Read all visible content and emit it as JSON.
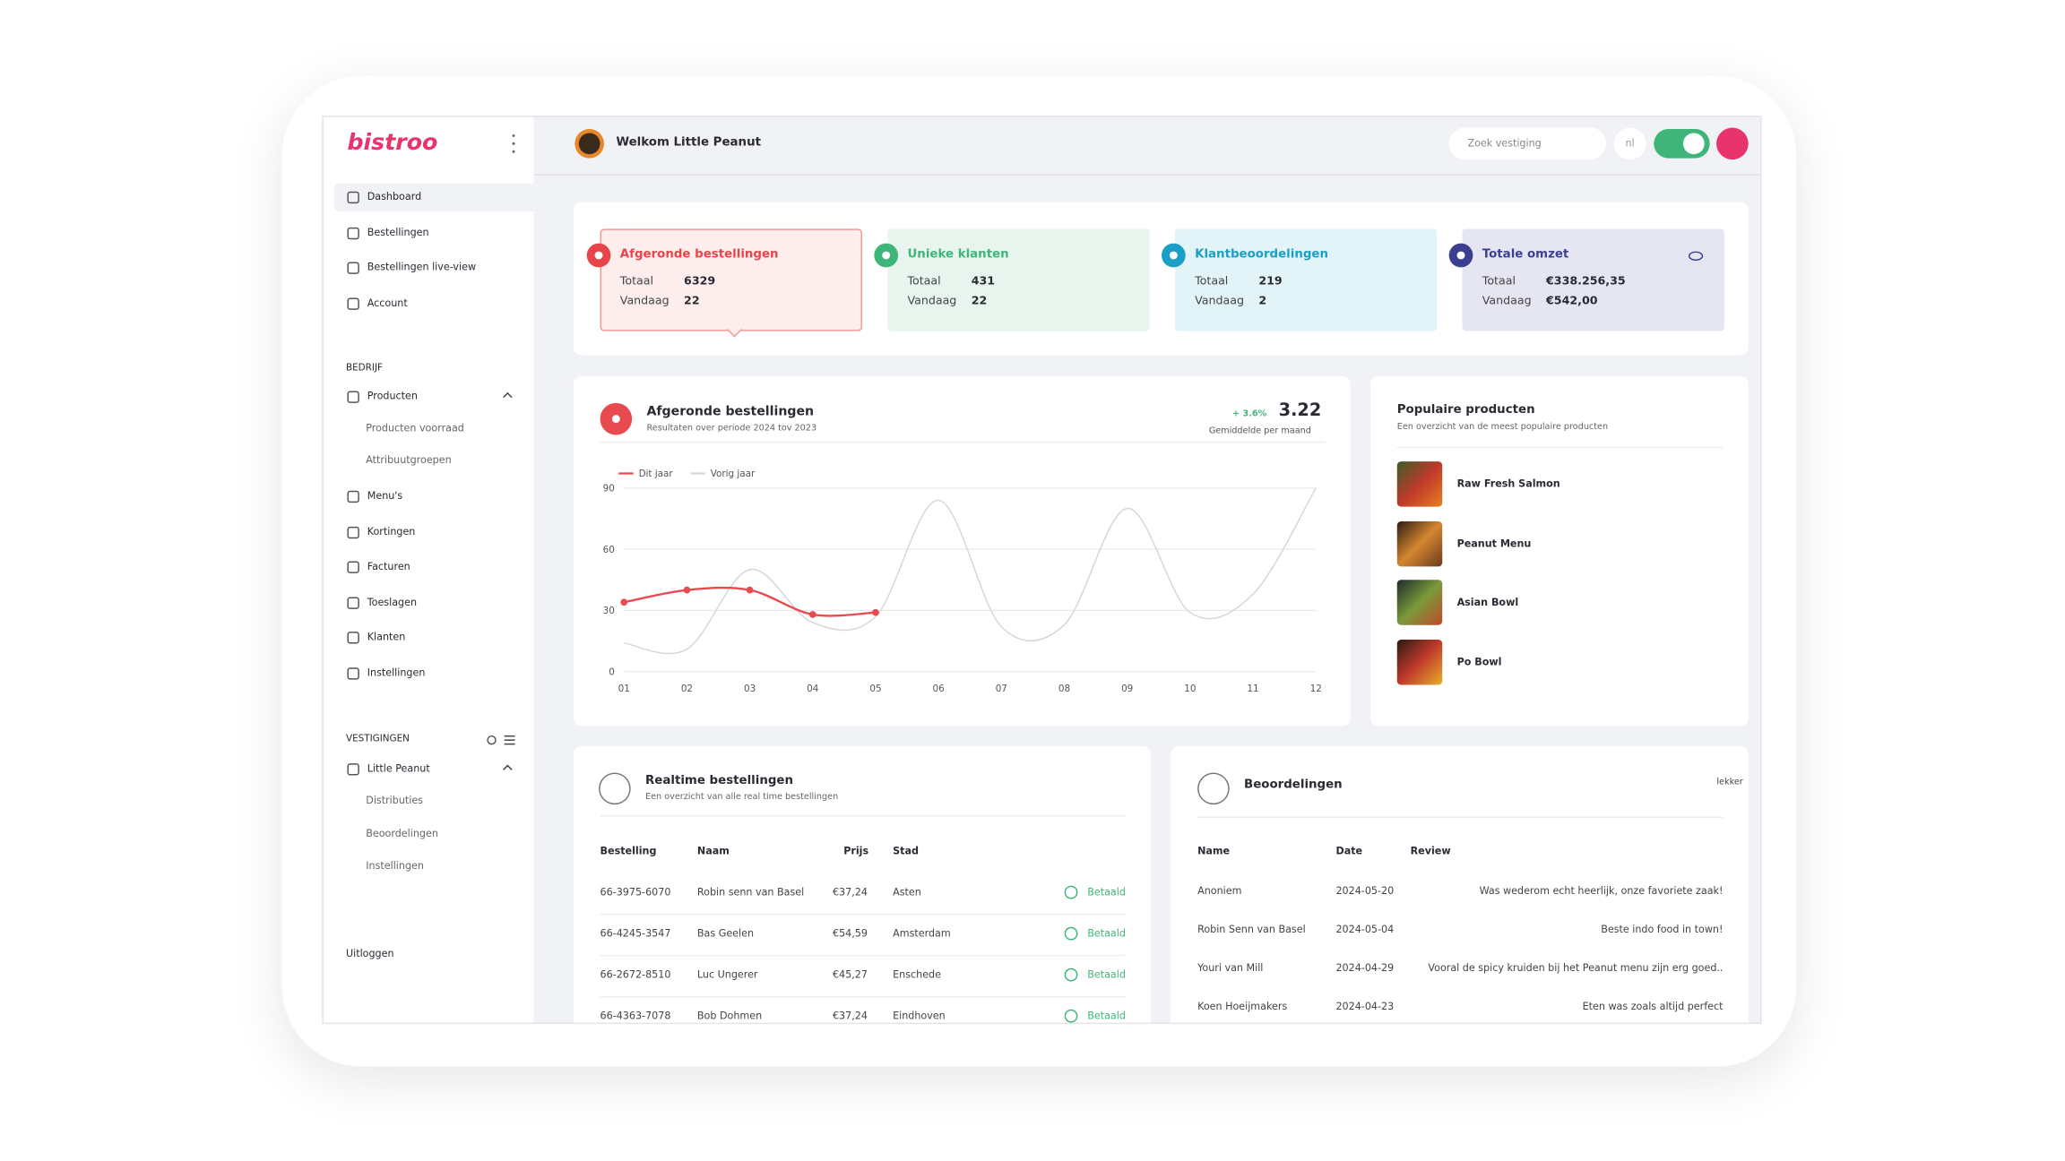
{
  "header": {
    "logo": "bistroo",
    "welcome": "Welkom Little Peanut",
    "search_placeholder": "Zoek vestiging",
    "language": "nl"
  },
  "sidebar": {
    "main": [
      "Dashboard",
      "Bestellingen",
      "Bestellingen live-view",
      "Account"
    ],
    "company_heading": "BEDRIJF",
    "company": [
      {
        "label": "Producten",
        "children": [
          "Producten voorraad",
          "Attribuutgroepen"
        ]
      },
      {
        "label": "Menu's"
      },
      {
        "label": "Kortingen"
      },
      {
        "label": "Facturen"
      },
      {
        "label": "Toeslagen"
      },
      {
        "label": "Klanten"
      },
      {
        "label": "Instellingen"
      }
    ],
    "locations_heading": "VESTIGINGEN",
    "locations": [
      {
        "label": "Little Peanut",
        "children": [
          "Distributies",
          "Beoordelingen",
          "Instellingen"
        ]
      }
    ],
    "logout": "Uitloggen"
  },
  "stats": [
    {
      "title": "Afgeronde bestellingen",
      "total_label": "Totaal",
      "total": "6329",
      "today_label": "Vandaag",
      "today": "22"
    },
    {
      "title": "Unieke klanten",
      "total_label": "Totaal",
      "total": "431",
      "today_label": "Vandaag",
      "today": "22"
    },
    {
      "title": "Klantbeoordelingen",
      "total_label": "Totaal",
      "total": "219",
      "today_label": "Vandaag",
      "today": "2"
    },
    {
      "title": "Totale omzet",
      "total_label": "Totaal",
      "total": "€338.256,35",
      "today_label": "Vandaag",
      "today": "€542,00"
    }
  ],
  "chart_data": {
    "type": "line",
    "title": "Afgeronde bestellingen",
    "subtitle": "Resultaten over periode 2024 tov 2023",
    "change": "+ 3.6%",
    "average": "3.22",
    "average_label": "Gemiddelde per maand",
    "categories": [
      "01",
      "02",
      "03",
      "04",
      "05",
      "06",
      "07",
      "08",
      "09",
      "10",
      "11",
      "12"
    ],
    "series": [
      {
        "name": "Dit jaar",
        "color": "#e84a4f",
        "values": [
          34,
          40,
          40,
          28,
          29,
          null,
          null,
          null,
          null,
          null,
          null,
          null
        ]
      },
      {
        "name": "Vorig jaar",
        "color": "#d6d6db",
        "values": [
          14,
          11,
          50,
          24,
          27,
          84,
          22,
          23,
          80,
          29,
          38,
          90
        ]
      }
    ],
    "ylim": [
      0,
      90
    ],
    "yticks": [
      0,
      30,
      60,
      90
    ],
    "grid": true
  },
  "popular": {
    "title": "Populaire producten",
    "subtitle": "Een overzicht van de meest populaire producten",
    "items": [
      "Raw Fresh Salmon",
      "Peanut Menu",
      "Asian Bowl",
      "Po Bowl"
    ]
  },
  "realtime": {
    "title": "Realtime bestellingen",
    "subtitle": "Een overzicht van alle real time bestellingen",
    "columns": [
      "Bestelling",
      "Naam",
      "Prijs",
      "Stad"
    ],
    "rows": [
      [
        "66-3975-6070",
        "Robin senn van Basel",
        "€37,24",
        "Asten",
        "Betaald"
      ],
      [
        "66-4245-3547",
        "Bas Geelen",
        "€54,59",
        "Amsterdam",
        "Betaald"
      ],
      [
        "66-2672-8510",
        "Luc Ungerer",
        "€45,27",
        "Enschede",
        "Betaald"
      ],
      [
        "66-4363-7078",
        "Bob Dohmen",
        "€37,24",
        "Eindhoven",
        "Betaald"
      ]
    ]
  },
  "reviews": {
    "title": "Beoordelingen",
    "tag": "lekker",
    "columns": [
      "Name",
      "Date",
      "Review"
    ],
    "rows": [
      [
        "Anoniem",
        "2024-05-20",
        "Was wederom echt heerlijk, onze favoriete zaak!"
      ],
      [
        "Robin Senn van Basel",
        "2024-05-04",
        "Beste indo food in town!"
      ],
      [
        "Youri van Mill",
        "2024-04-29",
        "Vooral de spicy kruiden bij het Peanut menu zijn erg goed.."
      ],
      [
        "Koen Hoeijmakers",
        "2024-04-23",
        "Eten was zoals altijd perfect"
      ]
    ]
  }
}
